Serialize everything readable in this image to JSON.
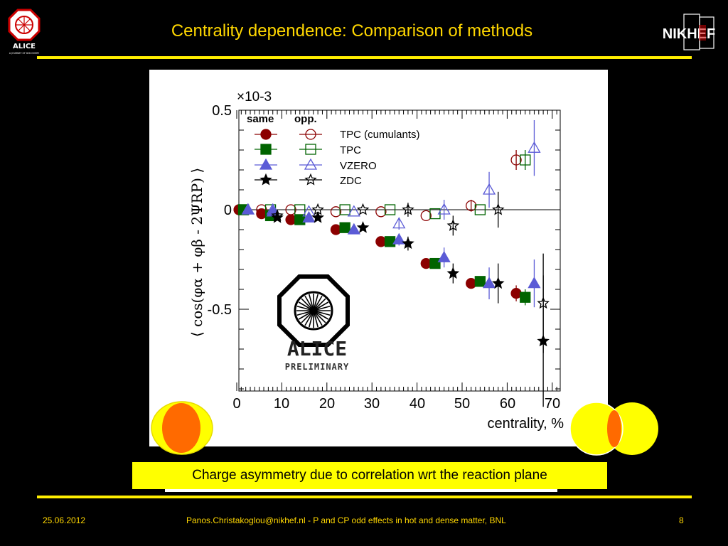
{
  "slide": {
    "title": "Centrality dependence: Comparison of methods",
    "caption": "Charge asymmetry due to correlation wrt the reaction plane",
    "footer_date": "25.06.2012",
    "footer_center": "Panos.Christakoglou@nikhef.nl - P and CP odd effects in hot and dense matter, BNL",
    "footer_page": "8",
    "logo_left_text": "ALICE",
    "logo_left_sub": "A JOURNEY OF DISCOVERY",
    "logo_right_text": "NIKHEF",
    "colors": {
      "title": "#ffd700",
      "rule": "#ffee00",
      "caption_box": "#ffff00",
      "background": "#000000"
    }
  },
  "chart_data": {
    "type": "scatter",
    "ylabel": "⟨ cos(φα + φβ - 2ΨRP) ⟩",
    "xlabel": "centrality, %",
    "multiplier": "×10-3",
    "xlim": [
      0,
      70
    ],
    "ylim": [
      -0.9,
      0.52
    ],
    "xticks": [
      "0",
      "10",
      "20",
      "30",
      "40",
      "50",
      "60",
      "70"
    ],
    "yticks": [
      "0.5",
      "0",
      "-0.5"
    ],
    "legend_headers": [
      "same",
      "opp."
    ],
    "watermark": {
      "title": "ALICE",
      "subtitle": "PRELIMINARY"
    },
    "series": [
      {
        "name": "TPC (cumulants)",
        "charge": "same",
        "marker": "circle-filled",
        "color": "#8b0000",
        "x": [
          0.5,
          5.5,
          12,
          22,
          32,
          42,
          52,
          62
        ],
        "y": [
          0.0,
          -0.02,
          -0.05,
          -0.1,
          -0.16,
          -0.27,
          -0.37,
          -0.42
        ],
        "err": [
          0.006,
          0.006,
          0.008,
          0.01,
          0.012,
          0.015,
          0.02,
          0.04
        ]
      },
      {
        "name": "TPC (cumulants)",
        "charge": "opp.",
        "marker": "circle-open",
        "color": "#8b0000",
        "x": [
          0.5,
          5.5,
          12,
          22,
          32,
          42,
          52,
          62
        ],
        "y": [
          0.0,
          0.0,
          0.0,
          -0.01,
          -0.01,
          -0.03,
          0.02,
          0.25
        ],
        "err": [
          0.006,
          0.006,
          0.008,
          0.01,
          0.012,
          0.015,
          0.03,
          0.05
        ]
      },
      {
        "name": "TPC",
        "charge": "same",
        "marker": "square-filled",
        "color": "#006400",
        "x": [
          1.5,
          7.5,
          14,
          24,
          34,
          44,
          54,
          64
        ],
        "y": [
          0.0,
          -0.03,
          -0.05,
          -0.09,
          -0.16,
          -0.27,
          -0.36,
          -0.44
        ],
        "err": [
          0.006,
          0.006,
          0.008,
          0.01,
          0.012,
          0.015,
          0.02,
          0.04
        ]
      },
      {
        "name": "TPC",
        "charge": "opp.",
        "marker": "square-open",
        "color": "#006400",
        "x": [
          1.5,
          7.5,
          14,
          24,
          34,
          44,
          54,
          64
        ],
        "y": [
          0.0,
          0.0,
          0.0,
          0.0,
          0.0,
          -0.02,
          0.0,
          0.25
        ],
        "err": [
          0.006,
          0.006,
          0.008,
          0.01,
          0.012,
          0.015,
          0.02,
          0.05
        ]
      },
      {
        "name": "VZERO",
        "charge": "same",
        "marker": "triangle-filled",
        "color": "#5b5bd6",
        "x": [
          2.5,
          8,
          16,
          26,
          36,
          46,
          56,
          66
        ],
        "y": [
          0.0,
          -0.01,
          -0.04,
          -0.1,
          -0.15,
          -0.24,
          -0.37,
          -0.37
        ],
        "err": [
          0.01,
          0.012,
          0.015,
          0.018,
          0.03,
          0.05,
          0.08,
          0.12
        ]
      },
      {
        "name": "VZERO",
        "charge": "opp.",
        "marker": "triangle-open",
        "color": "#5b5bd6",
        "x": [
          2.5,
          8,
          16,
          26,
          36,
          46,
          56,
          66
        ],
        "y": [
          0.0,
          0.0,
          -0.01,
          -0.01,
          -0.07,
          0.0,
          0.1,
          0.31
        ],
        "err": [
          0.01,
          0.012,
          0.015,
          0.018,
          0.03,
          0.05,
          0.09,
          0.14
        ]
      },
      {
        "name": "ZDC",
        "charge": "same",
        "marker": "star-filled",
        "color": "#000000",
        "x": [
          9,
          18,
          28,
          38,
          48,
          58,
          68
        ],
        "y": [
          -0.04,
          -0.04,
          -0.09,
          -0.17,
          -0.32,
          -0.37,
          -0.66
        ],
        "err": [
          0.012,
          0.018,
          0.025,
          0.035,
          0.05,
          0.1,
          0.33
        ]
      },
      {
        "name": "ZDC",
        "charge": "opp.",
        "marker": "star-open",
        "color": "#000000",
        "x": [
          9,
          18,
          28,
          38,
          48,
          58,
          68
        ],
        "y": [
          -0.03,
          0.0,
          0.0,
          0.0,
          -0.08,
          0.0,
          -0.47
        ],
        "err": [
          0.012,
          0.018,
          0.025,
          0.035,
          0.05,
          0.09,
          0.25
        ]
      }
    ]
  }
}
